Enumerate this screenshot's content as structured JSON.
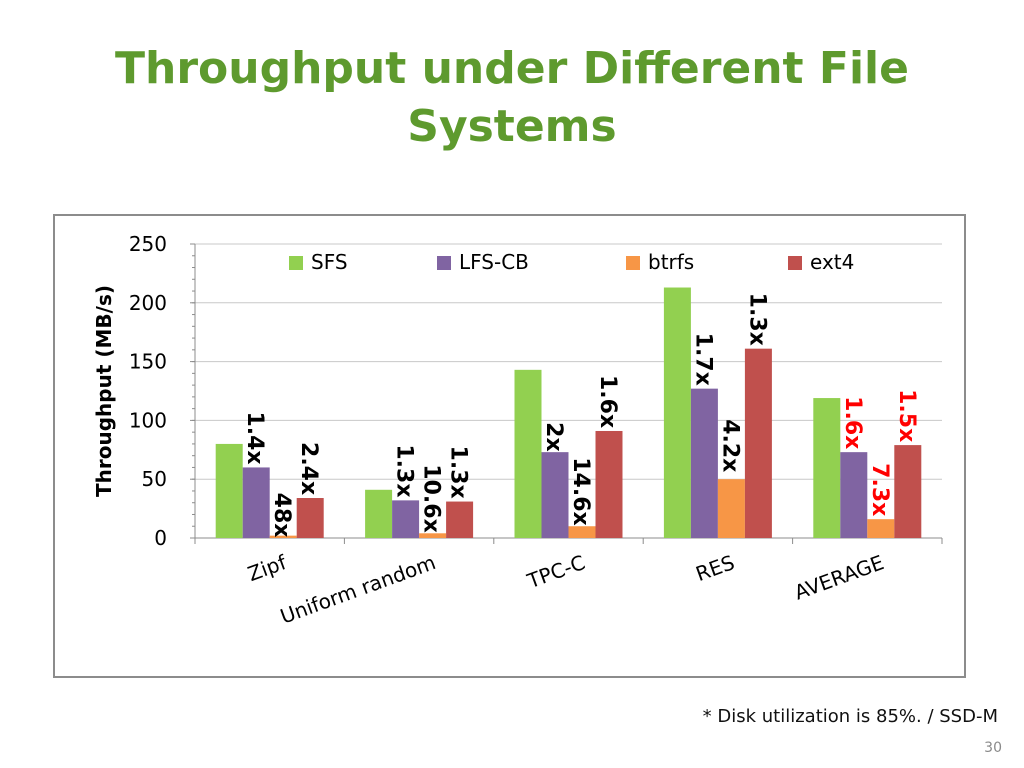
{
  "slide": {
    "title_line1": "Throughput under Different File",
    "title_line2": "Systems",
    "footnote": "* Disk utilization is 85%. / SSD-M",
    "page_number": "30"
  },
  "chart_data": {
    "type": "bar",
    "title": "",
    "xlabel": "",
    "ylabel": "Throughput (MB/s)",
    "ylim": [
      0,
      250
    ],
    "yticks": [
      0,
      50,
      100,
      150,
      200,
      250
    ],
    "grid": true,
    "legend_position": "top",
    "categories": [
      "Zipf",
      "Uniform random",
      "TPC-C",
      "RES",
      "AVERAGE"
    ],
    "series": [
      {
        "name": "SFS",
        "color": "#92d050",
        "values": [
          80,
          41,
          143,
          213,
          119
        ]
      },
      {
        "name": "LFS-CB",
        "color": "#8064a2",
        "values": [
          60,
          32,
          73,
          127,
          73
        ]
      },
      {
        "name": "btrfs",
        "color": "#f79646",
        "values": [
          2,
          4,
          10,
          50,
          16
        ]
      },
      {
        "name": "ext4",
        "color": "#c0504d",
        "values": [
          34,
          31,
          91,
          161,
          79
        ]
      }
    ],
    "annotations": [
      {
        "category": 0,
        "series": 1,
        "text": "1.4x",
        "color": "#000000"
      },
      {
        "category": 0,
        "series": 2,
        "text": "48x",
        "color": "#000000"
      },
      {
        "category": 0,
        "series": 3,
        "text": "2.4x",
        "color": "#000000"
      },
      {
        "category": 1,
        "series": 1,
        "text": "1.3x",
        "color": "#000000"
      },
      {
        "category": 1,
        "series": 2,
        "text": "10.6x",
        "color": "#000000"
      },
      {
        "category": 1,
        "series": 3,
        "text": "1.3x",
        "color": "#000000"
      },
      {
        "category": 2,
        "series": 1,
        "text": "2x",
        "color": "#000000"
      },
      {
        "category": 2,
        "series": 2,
        "text": "14.6x",
        "color": "#000000"
      },
      {
        "category": 2,
        "series": 3,
        "text": "1.6x",
        "color": "#000000"
      },
      {
        "category": 3,
        "series": 1,
        "text": "1.7x",
        "color": "#000000"
      },
      {
        "category": 3,
        "series": 2,
        "text": "4.2x",
        "color": "#000000"
      },
      {
        "category": 3,
        "series": 3,
        "text": "1.3x",
        "color": "#000000"
      },
      {
        "category": 4,
        "series": 1,
        "text": "1.6x",
        "color": "#ff0000"
      },
      {
        "category": 4,
        "series": 2,
        "text": "7.3x",
        "color": "#ff0000"
      },
      {
        "category": 4,
        "series": 3,
        "text": "1.5x",
        "color": "#ff0000"
      }
    ]
  }
}
